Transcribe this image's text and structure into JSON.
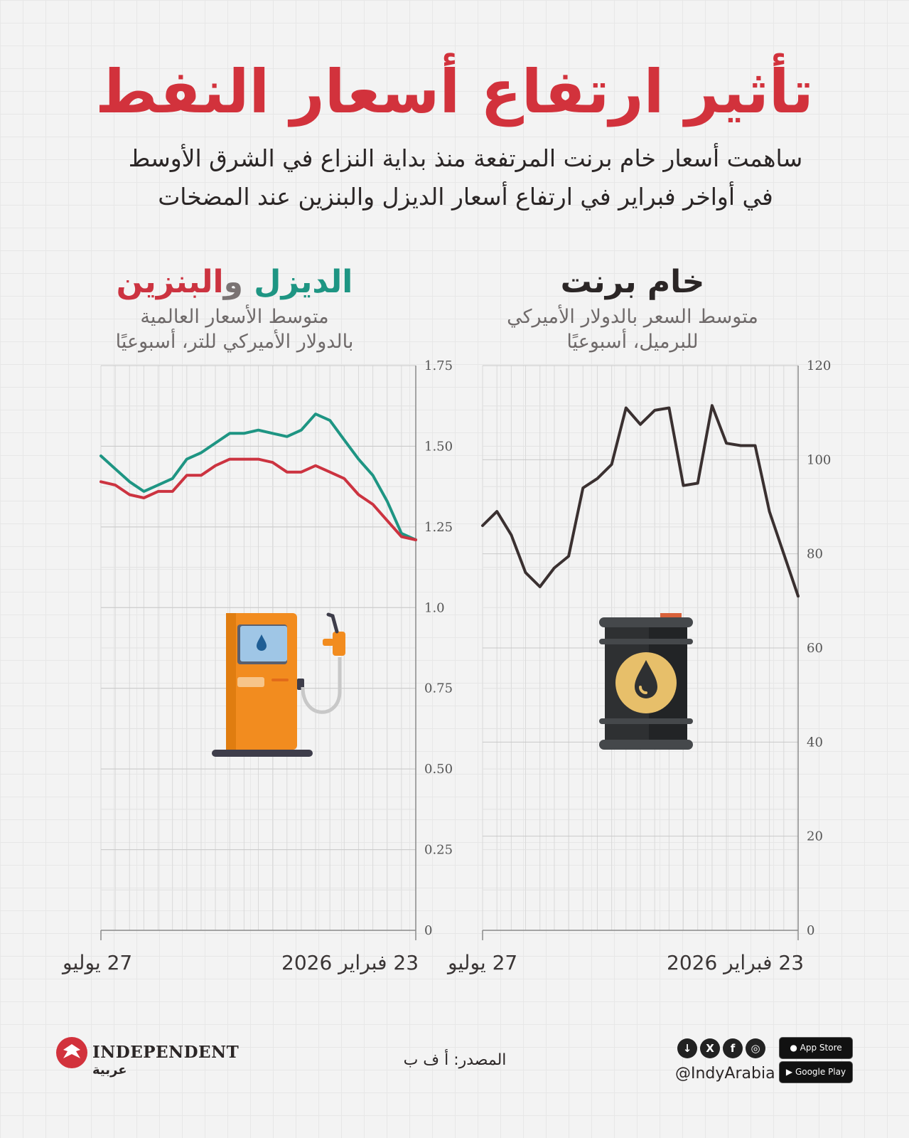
{
  "header": {
    "title": "تأثير ارتفاع أسعار النفط",
    "subtitle_line1": "ساهمت أسعار خام برنت المرتفعة منذ بداية النزاع في الشرق الأوسط",
    "subtitle_line2": "في أواخر فبراير في ارتفاع أسعار الديزل والبنزين عند المضخات"
  },
  "fuel_panel": {
    "title_diesel": "الديزل",
    "title_and": " و",
    "title_petrol": "البنزين",
    "sub_line1": "متوسط الأسعار العالمية",
    "sub_line2": "بالدولار الأميركي للتر، أسبوعيًا",
    "x_start": "27 يوليو",
    "x_end": "23 فبراير 2026",
    "icon": "fuel-pump-icon"
  },
  "brent_panel": {
    "title": "خام برنت",
    "sub_line1": "متوسط السعر بالدولار الأميركي",
    "sub_line2": "للبرميل، أسبوعيًا",
    "x_start": "27 يوليو",
    "x_end": "23 فبراير 2026",
    "icon": "oil-barrel-icon"
  },
  "footer": {
    "source": "المصدر: أ ف ب",
    "logo_text": "INDEPENDENT",
    "logo_arabic": "عربية",
    "handle": "@IndyArabia",
    "app_store": "App Store",
    "google_play": "Google Play"
  },
  "colors": {
    "title_red": "#d2323c",
    "diesel_green": "#1e9583",
    "petrol_red": "#cc3340",
    "brent_dark": "#3a3030"
  },
  "chart_data": [
    {
      "type": "line",
      "ylim": [
        0,
        1.75
      ],
      "yticks": [
        "0",
        "0.25",
        "0.50",
        "0.75",
        "1.0",
        "1.25",
        "1.50",
        "1.75"
      ],
      "ytick_values": [
        0,
        0.25,
        0.5,
        0.75,
        1.0,
        1.25,
        1.5,
        1.75
      ],
      "x_start_label": "27 يوليو",
      "x_end_label": "23 فبراير 2026",
      "x_count": 23,
      "grid": true,
      "series": [
        {
          "name": "الديزل",
          "color": "#1e9583",
          "values": [
            1.47,
            1.43,
            1.39,
            1.36,
            1.38,
            1.4,
            1.46,
            1.48,
            1.51,
            1.54,
            1.54,
            1.55,
            1.54,
            1.53,
            1.55,
            1.6,
            1.58,
            1.52,
            1.46,
            1.41,
            1.33,
            1.23,
            1.21
          ]
        },
        {
          "name": "البنزين",
          "color": "#cc3340",
          "values": [
            1.39,
            1.38,
            1.35,
            1.34,
            1.36,
            1.36,
            1.41,
            1.41,
            1.44,
            1.46,
            1.46,
            1.46,
            1.45,
            1.42,
            1.42,
            1.44,
            1.42,
            1.4,
            1.35,
            1.32,
            1.27,
            1.22,
            1.21
          ]
        }
      ]
    },
    {
      "type": "line",
      "ylim": [
        0,
        120
      ],
      "yticks": [
        "0",
        "20",
        "40",
        "60",
        "80",
        "100",
        "120"
      ],
      "ytick_values": [
        0,
        20,
        40,
        60,
        80,
        100,
        120
      ],
      "x_start_label": "27 يوليو",
      "x_end_label": "23 فبراير 2026",
      "x_count": 23,
      "grid": true,
      "series": [
        {
          "name": "خام برنت",
          "color": "#3a3030",
          "values": [
            86,
            89,
            84,
            76,
            73,
            77,
            79.5,
            94,
            96,
            99,
            111,
            107.5,
            110.5,
            111,
            94.5,
            95,
            111.5,
            103.5,
            103,
            103,
            89,
            80,
            71
          ]
        }
      ]
    }
  ]
}
